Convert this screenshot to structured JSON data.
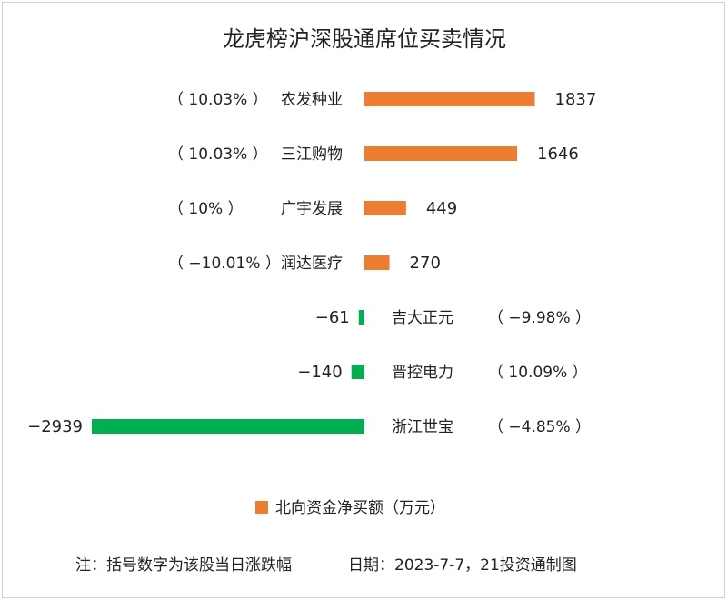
{
  "chart_data": {
    "type": "bar",
    "orientation": "horizontal",
    "title": "龙虎榜沪深股通席位买卖情况",
    "categories": [
      "农发种业",
      "三江购物",
      "广宇发展",
      "润达医疗",
      "吉大正元",
      "晋控电力",
      "浙江世宝"
    ],
    "pct_labels": [
      "（ 10.03% ）",
      "（ 10.03% ）",
      "（ 10% ）",
      "（ −10.01% ）",
      "（ −9.98% ）",
      "（ 10.09% ）",
      "（ −4.85% ）"
    ],
    "value_labels": [
      "1837",
      "1646",
      "449",
      "270",
      "−61",
      "−140",
      "−2939"
    ],
    "series": [
      {
        "name": "北向资金净买额（万元）",
        "values": [
          1837,
          1646,
          449,
          270,
          -61,
          -140,
          -2939
        ]
      }
    ],
    "colors": {
      "positive": "#ed7d31",
      "negative": "#00b050"
    },
    "legend_position": "bottom",
    "grid": false
  },
  "footer": {
    "note": "注：括号数字为该股当日涨跌幅",
    "date": "日期：2023-7-7，21投资通制图"
  }
}
